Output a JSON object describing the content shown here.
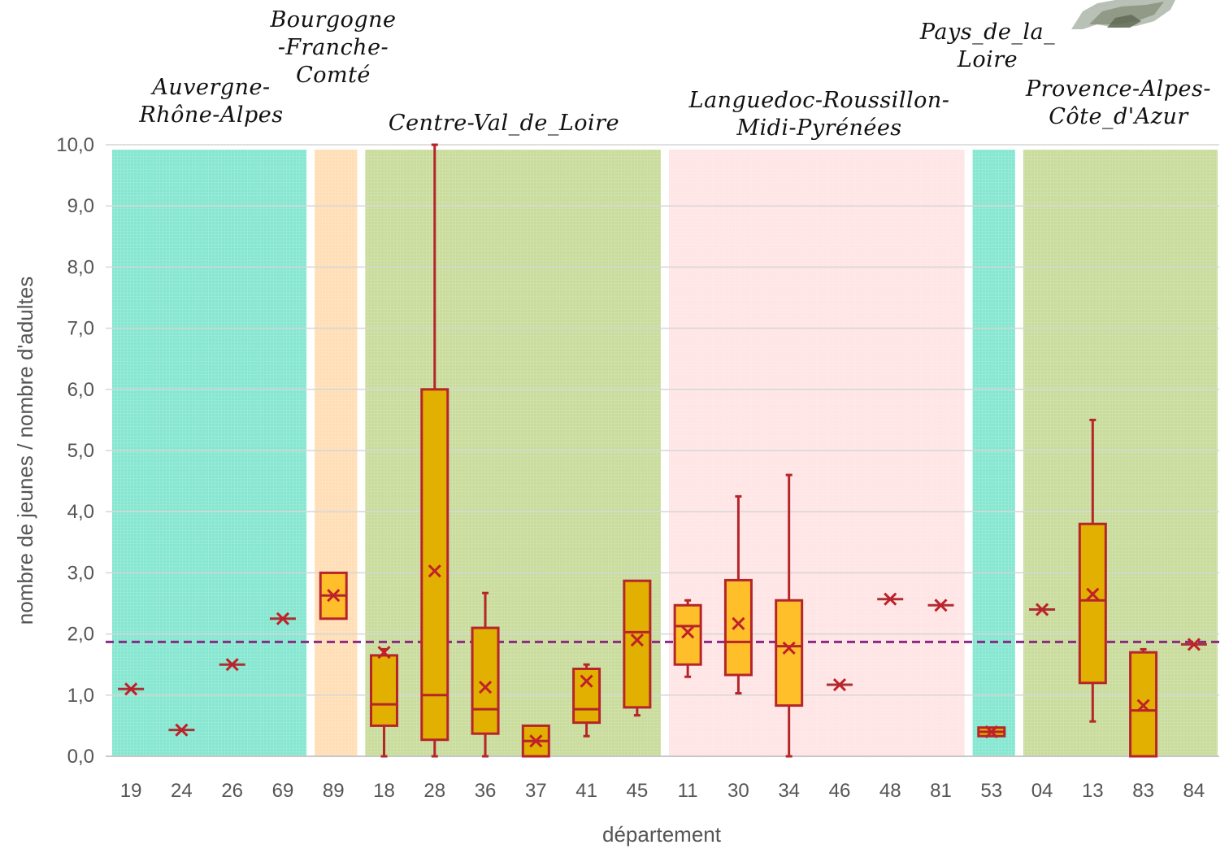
{
  "chart_data": {
    "type": "box",
    "xlabel": "département",
    "ylabel": "nombre de jeunes / nombre d'adultes",
    "ylim": [
      0,
      10
    ],
    "yticks": [
      "0,0",
      "1,0",
      "2,0",
      "3,0",
      "4,0",
      "5,0",
      "6,0",
      "7,0",
      "8,0",
      "9,0",
      "10,0"
    ],
    "categories": [
      "19",
      "24",
      "26",
      "69",
      "89",
      "18",
      "28",
      "36",
      "37",
      "41",
      "45",
      "11",
      "30",
      "34",
      "46",
      "48",
      "81",
      "53",
      "04",
      "13",
      "83",
      "84"
    ],
    "reference_line": 1.87,
    "regions": [
      {
        "label": [
          "Auvergne-",
          "Rhône-Alpes"
        ],
        "departements": [
          "19",
          "24",
          "26",
          "69"
        ],
        "color": "#22d3aa"
      },
      {
        "label": [
          "Bourgogne",
          "-Franche-",
          "Comté"
        ],
        "departements": [
          "89"
        ],
        "color": "#ffc27a"
      },
      {
        "label": [
          "Centre-Val_de_Loire"
        ],
        "departements": [
          "18",
          "28",
          "36",
          "37",
          "41",
          "45"
        ],
        "color": "#9cbf4a"
      },
      {
        "label": [
          "Languedoc-Roussillon-",
          "Midi-Pyrénées"
        ],
        "departements": [
          "11",
          "30",
          "34",
          "46",
          "48",
          "81"
        ],
        "color": "#ffd0d0"
      },
      {
        "label": [
          "Pays_de_la_",
          "Loire"
        ],
        "departements": [
          "53"
        ],
        "color": "#22d3aa"
      },
      {
        "label": [
          "Provence-Alpes-",
          "Côte_d'Azur"
        ],
        "departements": [
          "04",
          "13",
          "83",
          "84"
        ],
        "color": "#9cbf4a"
      }
    ],
    "boxes": [
      {
        "dep": "19",
        "min": 1.1,
        "q1": 1.1,
        "median": 1.1,
        "q3": 1.1,
        "max": 1.1,
        "mean": 1.1,
        "fill": "none"
      },
      {
        "dep": "24",
        "min": 0.43,
        "q1": 0.43,
        "median": 0.43,
        "q3": 0.43,
        "max": 0.43,
        "mean": 0.43,
        "fill": "none"
      },
      {
        "dep": "26",
        "min": 1.5,
        "q1": 1.5,
        "median": 1.5,
        "q3": 1.5,
        "max": 1.5,
        "mean": 1.5,
        "fill": "none"
      },
      {
        "dep": "69",
        "min": 2.25,
        "q1": 2.25,
        "median": 2.25,
        "q3": 2.25,
        "max": 2.25,
        "mean": 2.25,
        "fill": "none"
      },
      {
        "dep": "89",
        "min": 2.25,
        "q1": 2.25,
        "median": 2.63,
        "q3": 3.0,
        "max": 3.0,
        "mean": 2.63,
        "fill": "#ffbf2a"
      },
      {
        "dep": "18",
        "min": 0.0,
        "q1": 0.5,
        "median": 0.85,
        "q3": 1.65,
        "max": 1.75,
        "mean": 1.7,
        "fill": "#e2b000"
      },
      {
        "dep": "28",
        "min": 0.0,
        "q1": 0.27,
        "median": 1.0,
        "q3": 6.0,
        "max": 10.0,
        "mean": 3.03,
        "fill": "#e2b000"
      },
      {
        "dep": "36",
        "min": 0.0,
        "q1": 0.37,
        "median": 0.77,
        "q3": 2.1,
        "max": 2.67,
        "mean": 1.13,
        "fill": "#e2b000"
      },
      {
        "dep": "37",
        "min": 0.0,
        "q1": 0.0,
        "median": 0.25,
        "q3": 0.5,
        "max": 0.5,
        "mean": 0.25,
        "fill": "#e2b000"
      },
      {
        "dep": "41",
        "min": 0.33,
        "q1": 0.55,
        "median": 0.77,
        "q3": 1.43,
        "max": 1.5,
        "mean": 1.23,
        "fill": "#e2b000"
      },
      {
        "dep": "45",
        "min": 0.67,
        "q1": 0.8,
        "median": 2.03,
        "q3": 2.87,
        "max": 2.87,
        "mean": 1.9,
        "fill": "#e2b000"
      },
      {
        "dep": "11",
        "min": 1.3,
        "q1": 1.5,
        "median": 2.13,
        "q3": 2.47,
        "max": 2.55,
        "mean": 2.03,
        "fill": "#ffbf2a"
      },
      {
        "dep": "30",
        "min": 1.03,
        "q1": 1.33,
        "median": 1.87,
        "q3": 2.88,
        "max": 4.25,
        "mean": 2.17,
        "fill": "#ffbf2a"
      },
      {
        "dep": "34",
        "min": 0.0,
        "q1": 0.83,
        "median": 1.8,
        "q3": 2.55,
        "max": 4.6,
        "mean": 1.77,
        "fill": "#ffbf2a"
      },
      {
        "dep": "46",
        "min": 1.17,
        "q1": 1.17,
        "median": 1.17,
        "q3": 1.17,
        "max": 1.17,
        "mean": 1.17,
        "fill": "none"
      },
      {
        "dep": "48",
        "min": 2.57,
        "q1": 2.57,
        "median": 2.57,
        "q3": 2.57,
        "max": 2.57,
        "mean": 2.57,
        "fill": "none"
      },
      {
        "dep": "81",
        "min": 2.47,
        "q1": 2.47,
        "median": 2.47,
        "q3": 2.47,
        "max": 2.47,
        "mean": 2.47,
        "fill": "none"
      },
      {
        "dep": "53",
        "min": 0.33,
        "q1": 0.33,
        "median": 0.4,
        "q3": 0.47,
        "max": 0.47,
        "mean": 0.4,
        "fill": "#e2b000"
      },
      {
        "dep": "04",
        "min": 2.4,
        "q1": 2.4,
        "median": 2.4,
        "q3": 2.4,
        "max": 2.4,
        "mean": 2.4,
        "fill": "none"
      },
      {
        "dep": "13",
        "min": 0.57,
        "q1": 1.2,
        "median": 2.55,
        "q3": 3.8,
        "max": 5.5,
        "mean": 2.65,
        "fill": "#e2b000"
      },
      {
        "dep": "83",
        "min": 0.0,
        "q1": 0.0,
        "median": 0.75,
        "q3": 1.7,
        "max": 1.75,
        "mean": 0.83,
        "fill": "#e2b000"
      },
      {
        "dep": "84",
        "min": 1.83,
        "q1": 1.83,
        "median": 1.83,
        "q3": 1.83,
        "max": 1.83,
        "mean": 1.83,
        "fill": "none"
      }
    ],
    "colors": {
      "box_stroke": "#b5252a",
      "mean_marker": "#c0202a",
      "reference_line": "#8b2a86",
      "grid": "#d6d6d6"
    }
  }
}
